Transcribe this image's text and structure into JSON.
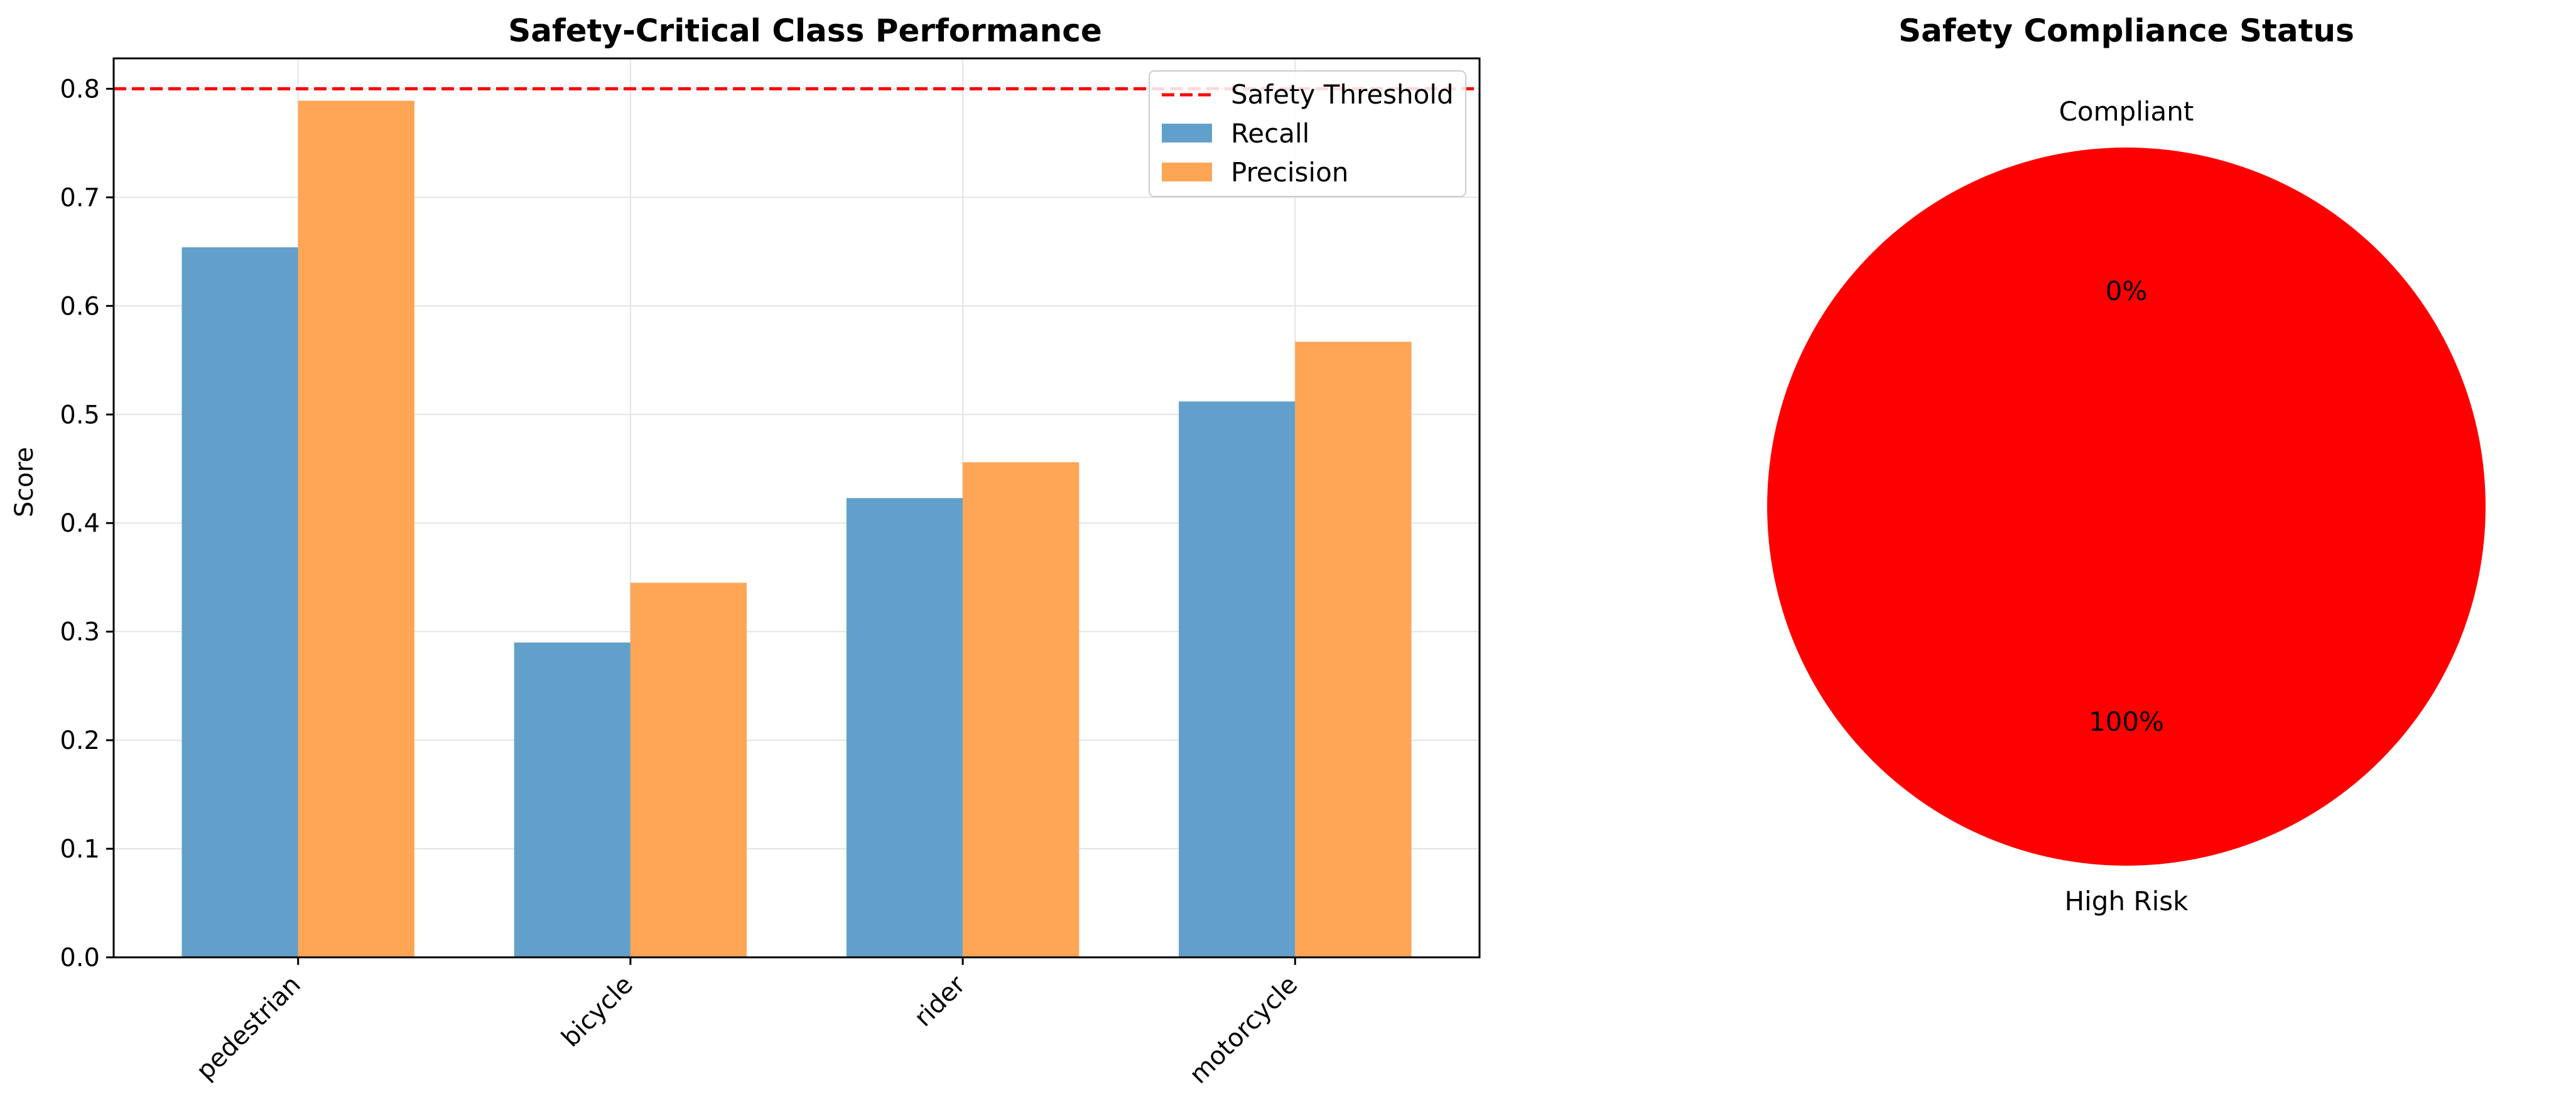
{
  "chart_data": [
    {
      "type": "bar",
      "title": "Safety-Critical Class Performance",
      "xlabel": "",
      "ylabel": "Score",
      "categories": [
        "pedestrian",
        "bicycle",
        "rider",
        "motorcycle"
      ],
      "series": [
        {
          "name": "Recall",
          "color": "#62A0CB",
          "values": [
            0.654,
            0.29,
            0.423,
            0.512
          ]
        },
        {
          "name": "Precision",
          "color": "#FFA556",
          "values": [
            0.789,
            0.345,
            0.456,
            0.567
          ]
        }
      ],
      "threshold": {
        "name": "Safety Threshold",
        "value": 0.8,
        "color": "#FF0000"
      },
      "ylim": [
        0,
        0.828
      ],
      "yticks": [
        "0.0",
        "0.1",
        "0.2",
        "0.3",
        "0.4",
        "0.5",
        "0.6",
        "0.7",
        "0.8"
      ],
      "grid": true,
      "legend": "top-right"
    },
    {
      "type": "pie",
      "title": "Safety Compliance Status",
      "slices": [
        {
          "label": "Compliant",
          "value": 0,
          "pct_label": "0%",
          "color": "#00AA00"
        },
        {
          "label": "High Risk",
          "value": 100,
          "pct_label": "100%",
          "color": "#FF0000"
        }
      ]
    }
  ]
}
